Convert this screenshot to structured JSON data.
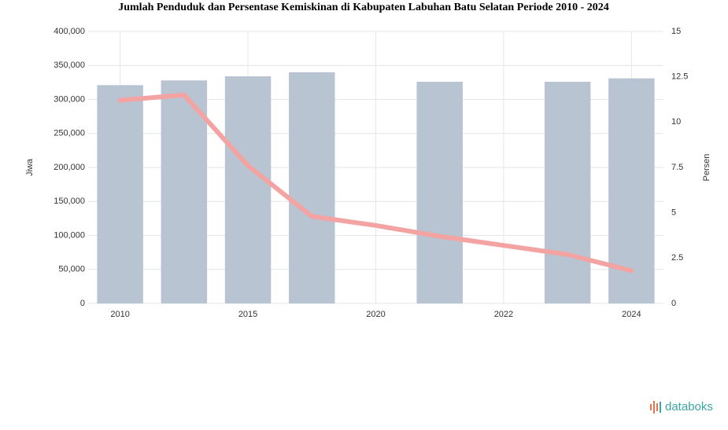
{
  "chart_data": {
    "type": "bar_line",
    "title": "Jumlah Penduduk dan Persentase Kemiskinan di Kabupaten Labuhan Batu Selatan Periode 2010 - 2024",
    "ylabel": "Jiwa",
    "y2label": "Persen",
    "categories": [
      "2010",
      null,
      "2015",
      null,
      "2020",
      null,
      "2022",
      null,
      "2024"
    ],
    "series": [
      {
        "type": "bar",
        "color": "#b8c4d2",
        "values": [
          321000,
          328000,
          334000,
          340000,
          null,
          326000,
          null,
          326000,
          331000
        ]
      },
      {
        "type": "line",
        "axis": "y2",
        "color": "#f4a3a3",
        "values": [
          11.2,
          11.5,
          7.6,
          4.8,
          4.3,
          3.7,
          3.2,
          2.7,
          1.8
        ]
      }
    ],
    "ylim": [
      0,
      400000
    ],
    "yticks": [
      0,
      {
        "value": 50000,
        "label": "50,000"
      },
      {
        "value": 100000,
        "label": "100,000"
      },
      {
        "value": 150000,
        "label": "150,000"
      },
      {
        "value": 200000,
        "label": "200,000"
      },
      {
        "value": 250000,
        "label": "250,000"
      },
      {
        "value": 300000,
        "label": "300,000"
      },
      {
        "value": 350000,
        "label": "350,000"
      },
      {
        "value": 400000,
        "label": "400,000"
      }
    ],
    "y2lim": [
      0,
      15
    ],
    "y2ticks": [
      0,
      2.5,
      5,
      7.5,
      10,
      12.5,
      15
    ],
    "grid": true,
    "brand": "databoks"
  }
}
